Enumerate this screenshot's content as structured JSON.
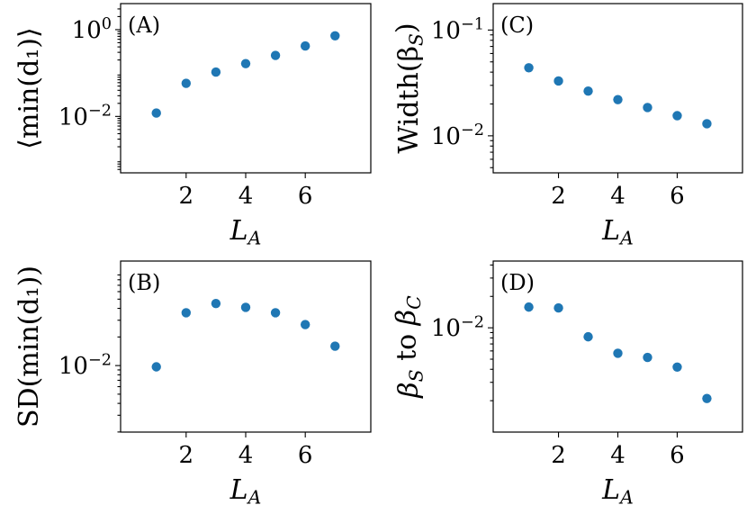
{
  "chart_data": [
    {
      "id": "A",
      "type": "scatter",
      "panel_label": "(A)",
      "xlabel": "L_A",
      "ylabel": "⟨min(d₁)⟩",
      "yscale": "log",
      "xlim": [
        -0.2,
        8.2
      ],
      "ylim_log10": [
        -3.3,
        0.6
      ],
      "xticks": [
        2,
        4,
        6
      ],
      "yticks": [
        {
          "log": 0,
          "base": "10",
          "exp": "0"
        },
        {
          "log": -2,
          "base": "10",
          "exp": "−2"
        }
      ],
      "x": [
        1,
        2,
        3,
        4,
        5,
        6,
        7
      ],
      "y": [
        0.012,
        0.058,
        0.105,
        0.165,
        0.255,
        0.42,
        0.72
      ],
      "color": "#1f77b4"
    },
    {
      "id": "B",
      "type": "scatter",
      "panel_label": "(B)",
      "xlabel": "L_A",
      "ylabel": "SD(min(d₁))",
      "yscale": "log",
      "xlim": [
        -0.2,
        8.2
      ],
      "ylim_log10": [
        -2.7,
        -0.9
      ],
      "xticks": [
        2,
        4,
        6
      ],
      "yticks": [
        {
          "log": -2,
          "base": "10",
          "exp": "−2"
        }
      ],
      "x": [
        1,
        2,
        3,
        4,
        5,
        6,
        7
      ],
      "y": [
        0.0097,
        0.036,
        0.045,
        0.041,
        0.036,
        0.027,
        0.016
      ],
      "color": "#1f77b4"
    },
    {
      "id": "C",
      "type": "scatter",
      "panel_label": "(C)",
      "xlabel": "L_A",
      "ylabel": "Width(β_S)",
      "yscale": "log",
      "xlim": [
        -0.2,
        8.2
      ],
      "ylim_log10": [
        -2.35,
        -0.75
      ],
      "xticks": [
        2,
        4,
        6
      ],
      "yticks": [
        {
          "log": -1,
          "base": "10",
          "exp": "−1"
        },
        {
          "log": -2,
          "base": "10",
          "exp": "−2"
        }
      ],
      "x": [
        1,
        2,
        3,
        4,
        5,
        6,
        7
      ],
      "y": [
        0.044,
        0.033,
        0.0265,
        0.022,
        0.0185,
        0.0155,
        0.013
      ],
      "color": "#1f77b4"
    },
    {
      "id": "D",
      "type": "scatter",
      "panel_label": "(D)",
      "xlabel": "L_A",
      "ylabel": "β_S to β_C",
      "yscale": "log",
      "xlim": [
        -0.2,
        8.2
      ],
      "ylim_log10": [
        -3.0,
        -1.36
      ],
      "xticks": [
        2,
        4,
        6
      ],
      "yticks": [
        {
          "log": -2,
          "base": "10",
          "exp": "−2"
        }
      ],
      "x": [
        1,
        2,
        3,
        4,
        5,
        6,
        7
      ],
      "y": [
        0.0158,
        0.0155,
        0.0082,
        0.0057,
        0.0052,
        0.0042,
        0.0021
      ],
      "color": "#1f77b4"
    }
  ]
}
